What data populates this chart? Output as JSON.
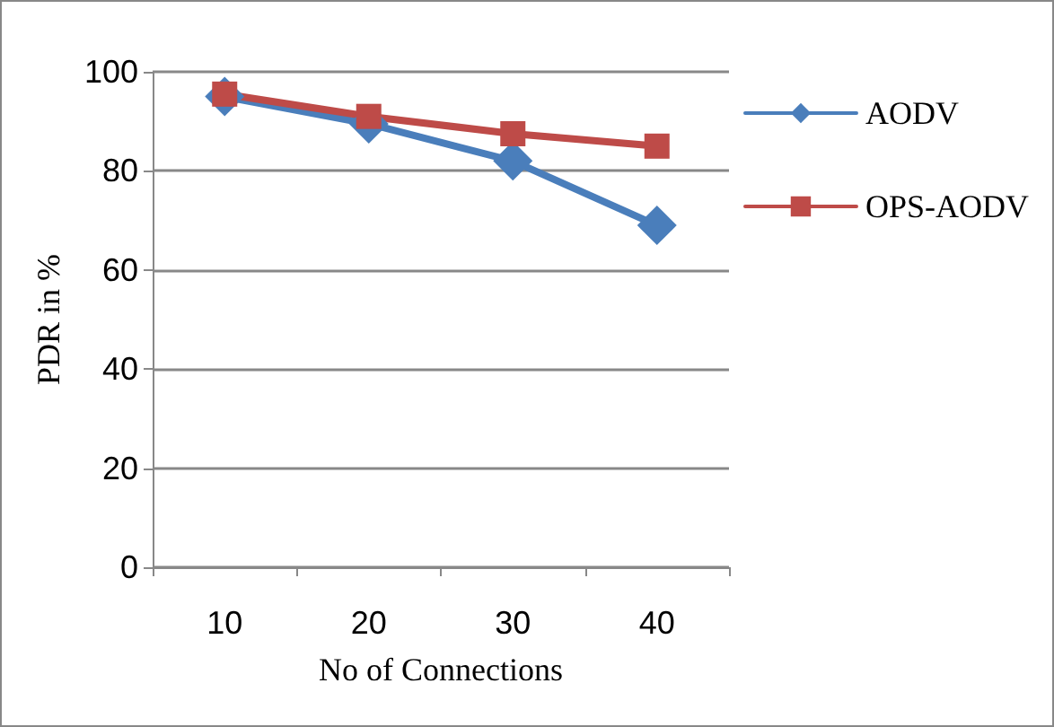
{
  "chart_data": {
    "type": "line",
    "xlabel": "No of Connections",
    "ylabel": "PDR in %",
    "categories": [
      "10",
      "20",
      "30",
      "40"
    ],
    "series": [
      {
        "name": "AODV",
        "color": "#4a7ebb",
        "marker": "diamond",
        "values": [
          95,
          89.5,
          82,
          69
        ]
      },
      {
        "name": "OPS-AODV",
        "color": "#be4b48",
        "marker": "square",
        "values": [
          95.5,
          91,
          87.5,
          85
        ]
      }
    ],
    "ylim": [
      0,
      100
    ],
    "yticks": [
      0,
      20,
      40,
      60,
      80,
      100
    ],
    "grid": "y",
    "legend": "right",
    "line_style": "solid"
  }
}
